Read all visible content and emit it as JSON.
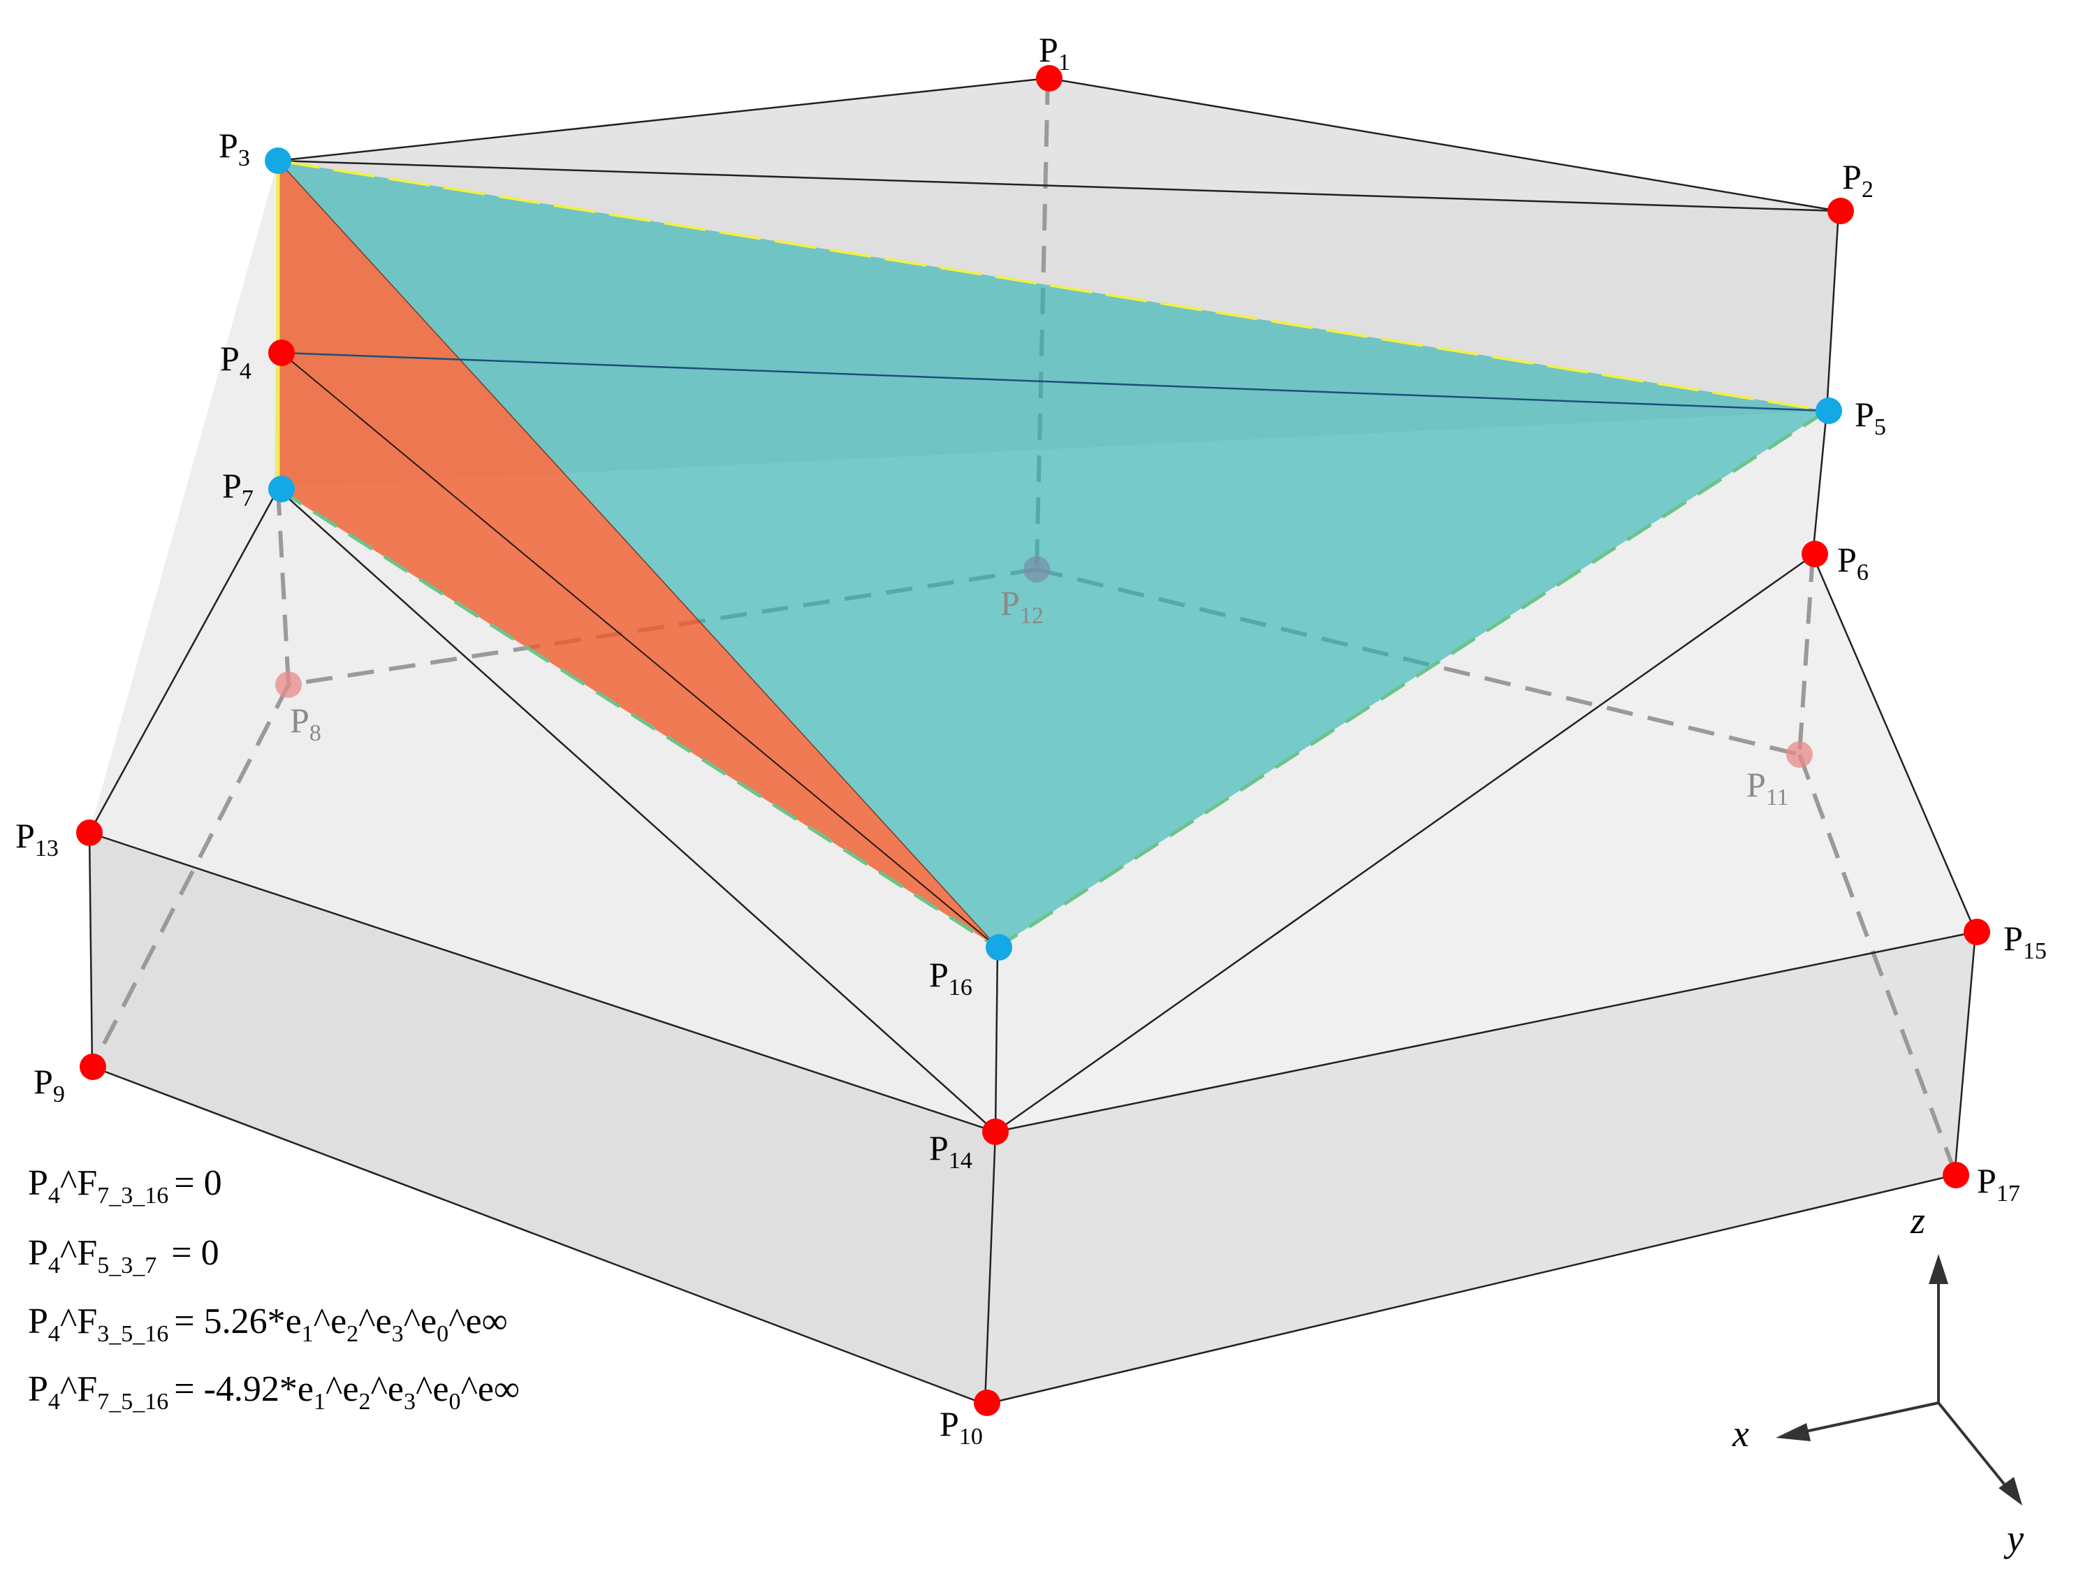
{
  "points": [
    {
      "id": "P1",
      "base": "P",
      "sub": "1",
      "color": "#ff0000"
    },
    {
      "id": "P2",
      "base": "P",
      "sub": "2",
      "color": "#ff0000"
    },
    {
      "id": "P3",
      "base": "P",
      "sub": "3",
      "color": "#14a8e6"
    },
    {
      "id": "P4",
      "base": "P",
      "sub": "4",
      "color": "#ff0000"
    },
    {
      "id": "P5",
      "base": "P",
      "sub": "5",
      "color": "#14a8e6"
    },
    {
      "id": "P6",
      "base": "P",
      "sub": "6",
      "color": "#ff0000"
    },
    {
      "id": "P7",
      "base": "P",
      "sub": "7",
      "color": "#14a8e6"
    },
    {
      "id": "P8",
      "base": "P",
      "sub": "8",
      "color": "#e88a8a",
      "hidden": true
    },
    {
      "id": "P9",
      "base": "P",
      "sub": "9",
      "color": "#ff0000"
    },
    {
      "id": "P10",
      "base": "P",
      "sub": "10",
      "color": "#ff0000"
    },
    {
      "id": "P11",
      "base": "P",
      "sub": "11",
      "color": "#e88a8a",
      "hidden": true
    },
    {
      "id": "P12",
      "base": "P",
      "sub": "12",
      "color": "#7a8fa8",
      "hidden": true
    },
    {
      "id": "P13",
      "base": "P",
      "sub": "13",
      "color": "#ff0000"
    },
    {
      "id": "P14",
      "base": "P",
      "sub": "14",
      "color": "#ff0000"
    },
    {
      "id": "P15",
      "base": "P",
      "sub": "15",
      "color": "#ff0000"
    },
    {
      "id": "P16",
      "base": "P",
      "sub": "16",
      "color": "#14a8e6"
    },
    {
      "id": "P17",
      "base": "P",
      "sub": "17",
      "color": "#ff0000"
    }
  ],
  "formulas": [
    {
      "p": "P",
      "p_sub": "4",
      "op": "^F",
      "f_sub": "7_3_16",
      "rhs": "= 0"
    },
    {
      "p": "P",
      "p_sub": "4",
      "op": "^F",
      "f_sub": "5_3_7",
      "rhs": " = 0"
    },
    {
      "p": "P",
      "p_sub": "4",
      "op": "^F",
      "f_sub": "3_5_16",
      "coef": "= 5.26*",
      "blade": [
        {
          "b": "e",
          "s": "1"
        },
        {
          "b": "^e",
          "s": "2"
        },
        {
          "b": "^e",
          "s": "3"
        },
        {
          "b": "^e",
          "s": "0"
        },
        {
          "b": "^e∞",
          "s": ""
        }
      ]
    },
    {
      "p": "P",
      "p_sub": "4",
      "op": "^F",
      "f_sub": "7_5_16",
      "coef": "= -4.92*",
      "blade": [
        {
          "b": "e",
          "s": "1"
        },
        {
          "b": "^e",
          "s": "2"
        },
        {
          "b": "^e",
          "s": "3"
        },
        {
          "b": "^e",
          "s": "0"
        },
        {
          "b": "^e∞",
          "s": ""
        }
      ]
    }
  ],
  "axes": {
    "z": "z",
    "x": "x",
    "y": "y"
  },
  "colors": {
    "prism_fill": "#d9d9d9",
    "plane_cyan": "#2bb3b3",
    "plane_orange": "#f05a28",
    "edge": "#222222",
    "hidden_edge": "#9a9a9a",
    "highlight_edge": "#f2ee4a"
  }
}
